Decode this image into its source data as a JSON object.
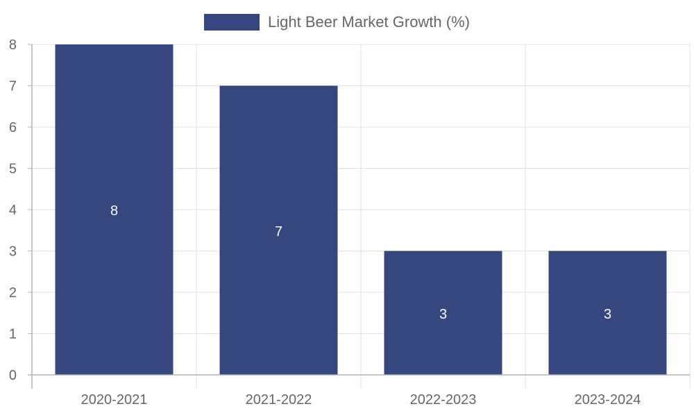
{
  "chart_data": {
    "type": "bar",
    "categories": [
      "2020-2021",
      "2021-2022",
      "2022-2023",
      "2023-2024"
    ],
    "series": [
      {
        "name": "Light Beer Market Growth (%)",
        "values": [
          8,
          7,
          3,
          3
        ],
        "color": "#36467f"
      }
    ],
    "value_labels": [
      "8",
      "7",
      "3",
      "3"
    ],
    "y_ticks": [
      "0",
      "1",
      "2",
      "3",
      "4",
      "5",
      "6",
      "7",
      "8"
    ],
    "ylim": [
      0,
      8
    ],
    "grid": true,
    "legend_position": "top-center",
    "title": "",
    "xlabel": "",
    "ylabel": ""
  },
  "colors": {
    "bar": "#36467f",
    "grid": "#e2e2e2",
    "axis": "#b4b4b4",
    "tick_text": "#666666",
    "bar_label": "#ffffff",
    "legend_text": "#666666"
  }
}
